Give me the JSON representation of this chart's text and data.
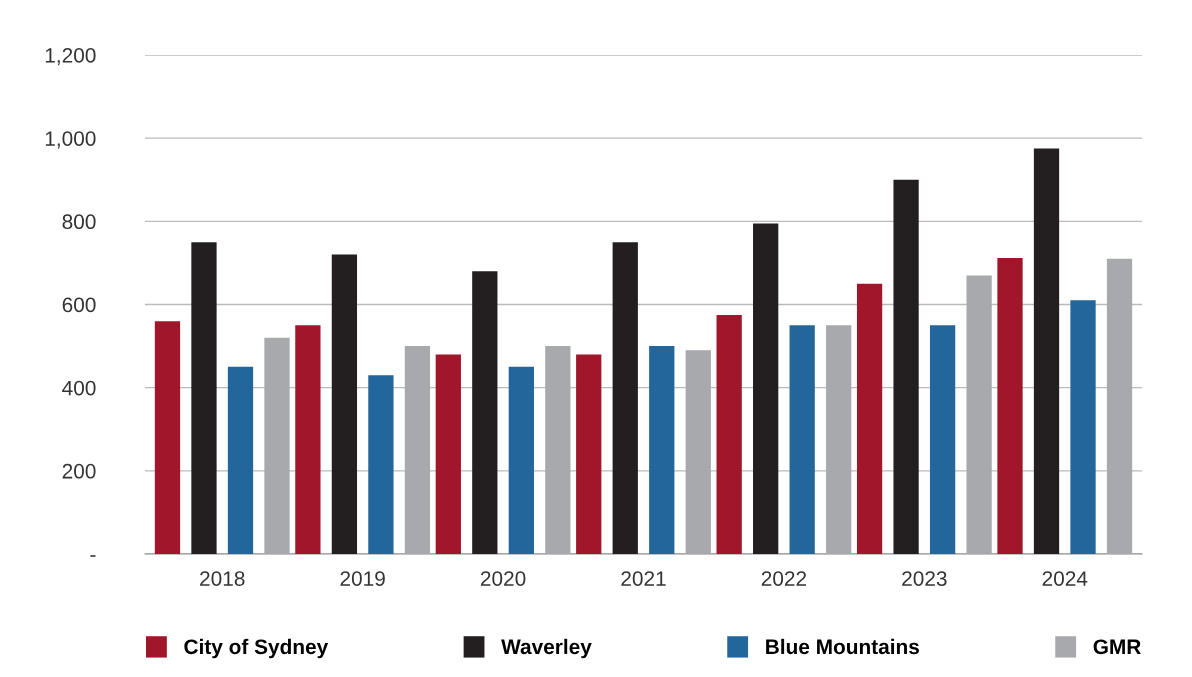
{
  "chart_data": {
    "type": "bar",
    "categories": [
      "2018",
      "2019",
      "2020",
      "2021",
      "2022",
      "2023",
      "2024"
    ],
    "series": [
      {
        "name": "City of Sydney",
        "color": "#a0162a",
        "values": [
          560,
          550,
          480,
          480,
          575,
          650,
          712
        ]
      },
      {
        "name": "Waverley",
        "color": "#231f20",
        "values": [
          750,
          720,
          680,
          750,
          795,
          900,
          975
        ]
      },
      {
        "name": "Blue Mountains",
        "color": "#22669b",
        "values": [
          450,
          430,
          450,
          500,
          550,
          550,
          610
        ]
      },
      {
        "name": "GMR",
        "color": "#a7a9ac",
        "values": [
          520,
          500,
          500,
          490,
          550,
          670,
          710
        ]
      }
    ],
    "ylim": [
      0,
      1200
    ],
    "yticks": [
      {
        "value": 0,
        "label": "-"
      },
      200,
      400,
      600,
      800,
      {
        "value": 1000,
        "label": "1,000"
      },
      {
        "value": 1200,
        "label": "1,200"
      }
    ],
    "grid": "y",
    "legend": "bottom"
  }
}
